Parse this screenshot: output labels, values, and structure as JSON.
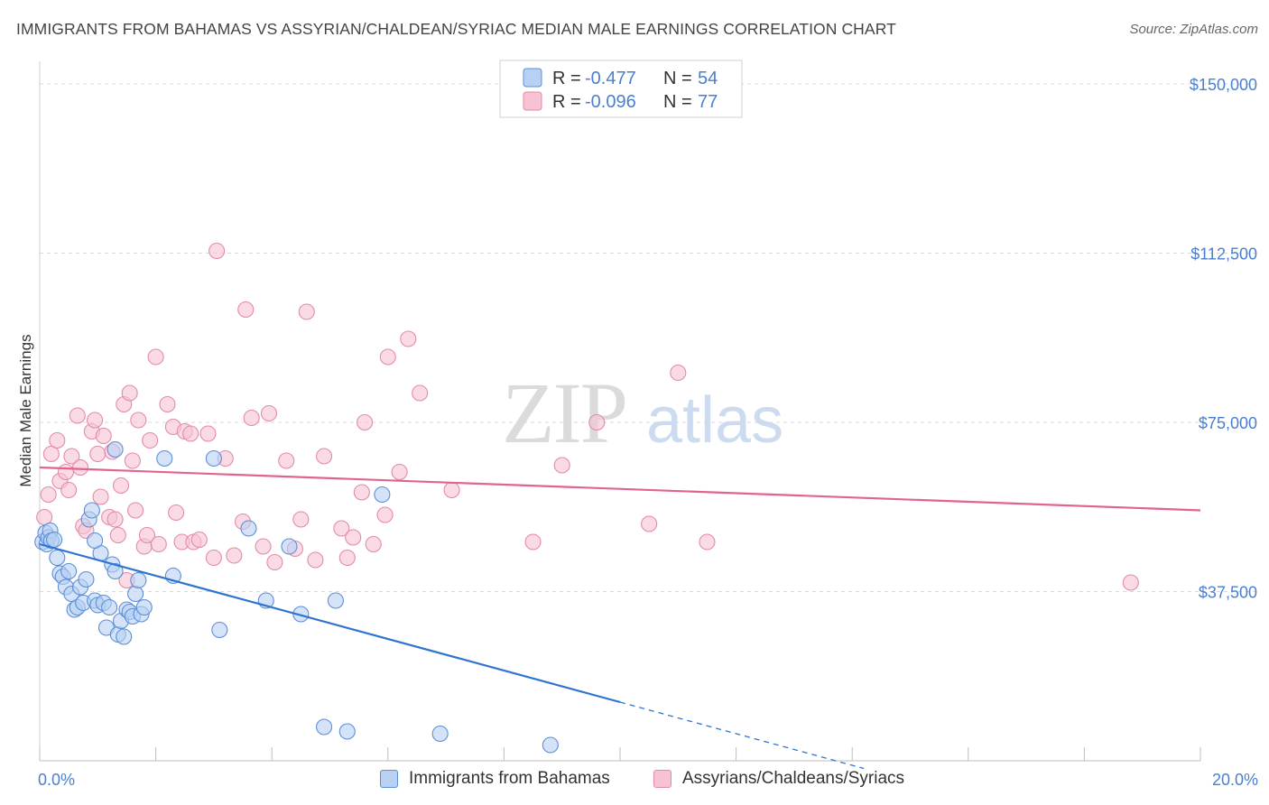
{
  "title": "IMMIGRANTS FROM BAHAMAS VS ASSYRIAN/CHALDEAN/SYRIAC MEDIAN MALE EARNINGS CORRELATION CHART",
  "source": "Source: ZipAtlas.com",
  "watermark": {
    "zip": "ZIP",
    "atlas": "atlas"
  },
  "colors": {
    "blue_fill": "#b8d1f3",
    "blue_stroke": "#5b8fd8",
    "blue_line": "#2f74d0",
    "pink_fill": "#f7c3d3",
    "pink_stroke": "#e38aa8",
    "pink_line": "#e0648f",
    "grid": "#d9d9d9",
    "accent": "#4a7fd0"
  },
  "legend": {
    "rows": [
      {
        "r_label": "R =",
        "r_value": "-0.477",
        "n_label": "N =",
        "n_value": "54",
        "color": "blue"
      },
      {
        "r_label": "R =",
        "r_value": "-0.096",
        "n_label": "N =",
        "n_value": "77",
        "color": "pink"
      }
    ]
  },
  "bottom_legend": [
    {
      "label": "Immigrants from Bahamas",
      "color": "blue"
    },
    {
      "label": "Assyrians/Chaldeans/Syriacs",
      "color": "pink"
    }
  ],
  "chart_data": {
    "type": "scatter",
    "title": "IMMIGRANTS FROM BAHAMAS VS ASSYRIAN/CHALDEAN/SYRIAC MEDIAN MALE EARNINGS CORRELATION CHART",
    "ylabel": "Median Male Earnings",
    "xlabel": "",
    "x_tick_labels": [
      "0.0%",
      "20.0%"
    ],
    "xlim": [
      0,
      20
    ],
    "y_ticks": [
      37500,
      75000,
      112500,
      150000
    ],
    "y_tick_labels": [
      "$37,500",
      "$75,000",
      "$112,500",
      "$150,000"
    ],
    "ylim": [
      0,
      155000
    ],
    "grid": "horizontal dashed",
    "legend_position": "top-center",
    "series": [
      {
        "name": "Immigrants from Bahamas",
        "color": "blue",
        "trend": {
          "x0": 0,
          "y0": 48000,
          "x1": 10,
          "y1": 13000,
          "dashed_to_x": 14.2
        },
        "points": [
          [
            0.05,
            48500
          ],
          [
            0.1,
            50500
          ],
          [
            0.12,
            48000
          ],
          [
            0.15,
            49500
          ],
          [
            0.18,
            51000
          ],
          [
            0.2,
            48800
          ],
          [
            0.25,
            49000
          ],
          [
            0.3,
            45000
          ],
          [
            0.35,
            41500
          ],
          [
            0.4,
            40800
          ],
          [
            0.45,
            38500
          ],
          [
            0.5,
            42000
          ],
          [
            0.55,
            37000
          ],
          [
            0.6,
            33500
          ],
          [
            0.65,
            34000
          ],
          [
            0.7,
            38500
          ],
          [
            0.75,
            35000
          ],
          [
            0.8,
            40200
          ],
          [
            0.85,
            53500
          ],
          [
            0.9,
            55500
          ],
          [
            0.95,
            35500
          ],
          [
            1.0,
            34500
          ],
          [
            1.05,
            46000
          ],
          [
            1.1,
            35000
          ],
          [
            1.15,
            29500
          ],
          [
            1.2,
            34000
          ],
          [
            1.25,
            43500
          ],
          [
            1.3,
            42000
          ],
          [
            1.35,
            28000
          ],
          [
            1.4,
            31000
          ],
          [
            1.45,
            27500
          ],
          [
            1.5,
            33500
          ],
          [
            1.55,
            33000
          ],
          [
            1.6,
            32000
          ],
          [
            1.65,
            37000
          ],
          [
            1.7,
            40000
          ],
          [
            1.75,
            32500
          ],
          [
            1.8,
            34000
          ],
          [
            0.95,
            48800
          ],
          [
            1.3,
            69000
          ],
          [
            2.15,
            67000
          ],
          [
            2.3,
            41000
          ],
          [
            3.0,
            67000
          ],
          [
            3.1,
            29000
          ],
          [
            3.6,
            51500
          ],
          [
            3.9,
            35500
          ],
          [
            4.3,
            47500
          ],
          [
            4.5,
            32500
          ],
          [
            4.9,
            7500
          ],
          [
            5.3,
            6500
          ],
          [
            5.1,
            35500
          ],
          [
            5.9,
            59000
          ],
          [
            6.9,
            6000
          ],
          [
            8.8,
            3500
          ]
        ]
      },
      {
        "name": "Assyrians/Chaldeans/Syriacs",
        "color": "pink",
        "trend": {
          "x0": 0,
          "y0": 65000,
          "x1": 20,
          "y1": 55500
        },
        "points": [
          [
            0.08,
            54000
          ],
          [
            0.15,
            59000
          ],
          [
            0.2,
            68000
          ],
          [
            0.3,
            71000
          ],
          [
            0.35,
            62000
          ],
          [
            0.45,
            64000
          ],
          [
            0.5,
            60000
          ],
          [
            0.55,
            67500
          ],
          [
            0.65,
            76500
          ],
          [
            0.7,
            65000
          ],
          [
            0.75,
            52000
          ],
          [
            0.8,
            51000
          ],
          [
            0.9,
            73000
          ],
          [
            0.95,
            75500
          ],
          [
            1.0,
            68000
          ],
          [
            1.05,
            58500
          ],
          [
            1.1,
            72000
          ],
          [
            1.2,
            54000
          ],
          [
            1.25,
            68500
          ],
          [
            1.3,
            53500
          ],
          [
            1.35,
            50000
          ],
          [
            1.4,
            61000
          ],
          [
            1.45,
            79000
          ],
          [
            1.5,
            40000
          ],
          [
            1.55,
            81500
          ],
          [
            1.6,
            66500
          ],
          [
            1.65,
            55500
          ],
          [
            1.7,
            75500
          ],
          [
            1.8,
            47500
          ],
          [
            1.85,
            50000
          ],
          [
            1.9,
            71000
          ],
          [
            2.0,
            89500
          ],
          [
            2.05,
            48000
          ],
          [
            2.2,
            79000
          ],
          [
            2.3,
            74000
          ],
          [
            2.35,
            55000
          ],
          [
            2.45,
            48500
          ],
          [
            2.5,
            73000
          ],
          [
            2.6,
            72500
          ],
          [
            2.65,
            48500
          ],
          [
            2.75,
            49000
          ],
          [
            2.9,
            72500
          ],
          [
            3.0,
            45000
          ],
          [
            3.05,
            113000
          ],
          [
            3.2,
            67000
          ],
          [
            3.35,
            45500
          ],
          [
            3.5,
            53000
          ],
          [
            3.55,
            100000
          ],
          [
            3.65,
            76000
          ],
          [
            3.85,
            47500
          ],
          [
            3.95,
            77000
          ],
          [
            4.05,
            44000
          ],
          [
            4.25,
            66500
          ],
          [
            4.4,
            47000
          ],
          [
            4.5,
            53500
          ],
          [
            4.6,
            99500
          ],
          [
            4.75,
            44500
          ],
          [
            4.9,
            67500
          ],
          [
            5.2,
            51500
          ],
          [
            5.3,
            45000
          ],
          [
            5.4,
            49500
          ],
          [
            5.55,
            59500
          ],
          [
            5.6,
            75000
          ],
          [
            5.75,
            48000
          ],
          [
            5.95,
            54500
          ],
          [
            6.0,
            89500
          ],
          [
            6.2,
            64000
          ],
          [
            6.35,
            93500
          ],
          [
            6.55,
            81500
          ],
          [
            7.1,
            60000
          ],
          [
            8.5,
            48500
          ],
          [
            9.0,
            65500
          ],
          [
            9.6,
            75000
          ],
          [
            10.5,
            52500
          ],
          [
            11.0,
            86000
          ],
          [
            11.5,
            48500
          ],
          [
            18.8,
            39500
          ]
        ]
      }
    ]
  }
}
